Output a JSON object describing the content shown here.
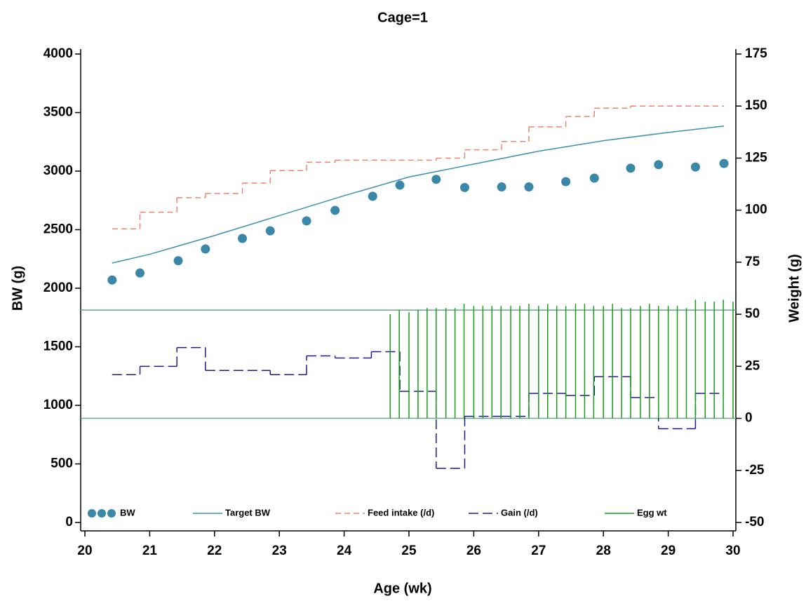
{
  "chart_data": {
    "type": "combo",
    "title": "Cage=1",
    "x_label": "Age (wk)",
    "y_label": "BW (g)",
    "y2_label": "Weight (g)",
    "xlim": [
      20,
      30
    ],
    "xticks": [
      20,
      21,
      22,
      23,
      24,
      25,
      26,
      27,
      28,
      29,
      30
    ],
    "ylim": [
      0,
      4000
    ],
    "yticks": [
      0,
      500,
      1000,
      1500,
      2000,
      2500,
      3000,
      3500,
      4000
    ],
    "y2lim": [
      -50,
      175
    ],
    "y2ticks": [
      -50,
      -25,
      0,
      25,
      50,
      75,
      100,
      125,
      150,
      175
    ],
    "legend": "bottom",
    "reference_lines": {
      "axis": "y2",
      "values": [
        0,
        52
      ],
      "color": "#6aa88a"
    },
    "series": [
      {
        "name": "BW",
        "type": "scatter",
        "color": "#3a87a8",
        "x": [
          20.42,
          20.85,
          21.44,
          21.86,
          22.43,
          22.86,
          23.42,
          23.86,
          24.44,
          24.86,
          25.42,
          25.86,
          26.43,
          26.85,
          27.42,
          27.86,
          28.42,
          28.85,
          29.42,
          29.86
        ],
        "values": [
          2070,
          2130,
          2235,
          2335,
          2425,
          2490,
          2575,
          2665,
          2785,
          2880,
          2930,
          2860,
          2865,
          2865,
          2910,
          2940,
          3025,
          3055,
          3035,
          3065
        ]
      },
      {
        "name": "Target BW",
        "type": "line",
        "color": "#3f8fb3",
        "x": [
          20.42,
          21,
          22,
          23,
          24,
          25,
          26,
          27,
          28,
          29,
          29.86
        ],
        "values": [
          2215,
          2290,
          2450,
          2620,
          2790,
          2950,
          3060,
          3170,
          3260,
          3330,
          3385
        ]
      },
      {
        "name": "Feed intake (/d)",
        "type": "step",
        "axis": "y2",
        "color": "#f08272",
        "x_edges": [
          20.42,
          20.85,
          21.42,
          21.86,
          22.43,
          22.86,
          23.42,
          23.86,
          25.42,
          25.86,
          26.43,
          26.85,
          27.42,
          27.86,
          28.42,
          29.86
        ],
        "values": [
          91,
          99,
          106,
          108,
          113,
          119,
          123,
          124,
          125,
          129,
          133,
          140,
          145,
          149,
          150
        ]
      },
      {
        "name": "Gain (/d)",
        "type": "step",
        "axis": "y2",
        "color": "#1c1c8c",
        "x_edges": [
          20.42,
          20.85,
          21.42,
          21.86,
          22.86,
          23.42,
          23.86,
          24.42,
          24.86,
          25.42,
          25.86,
          26.43,
          26.85,
          27.42,
          27.86,
          28.42,
          28.85,
          29.42,
          29.86
        ],
        "values": [
          21,
          25,
          34,
          23,
          21,
          30,
          29,
          32,
          13,
          -24,
          1,
          1,
          12,
          11,
          20,
          10,
          -5,
          12
        ]
      },
      {
        "name": "Egg wt",
        "type": "needle",
        "axis": "y2",
        "color": "#1a9a1a",
        "x": [
          24.71,
          24.85,
          25.0,
          25.14,
          25.28,
          25.42,
          25.57,
          25.71,
          25.85,
          26.0,
          26.14,
          26.28,
          26.42,
          26.57,
          26.71,
          26.85,
          27.0,
          27.14,
          27.28,
          27.42,
          27.57,
          27.71,
          27.85,
          28.0,
          28.14,
          28.28,
          28.42,
          28.57,
          28.71,
          28.85,
          29.0,
          29.14,
          29.28,
          29.42,
          29.57,
          29.71,
          29.85,
          30.0
        ],
        "values": [
          50,
          52,
          51,
          52,
          53,
          53,
          53,
          53,
          55,
          54,
          54,
          54,
          54,
          54,
          54,
          55,
          54,
          55,
          54,
          54,
          55,
          55,
          54,
          54,
          55,
          53,
          53,
          54,
          55,
          54,
          54,
          54,
          53,
          57,
          56,
          56,
          57,
          56
        ]
      }
    ]
  }
}
